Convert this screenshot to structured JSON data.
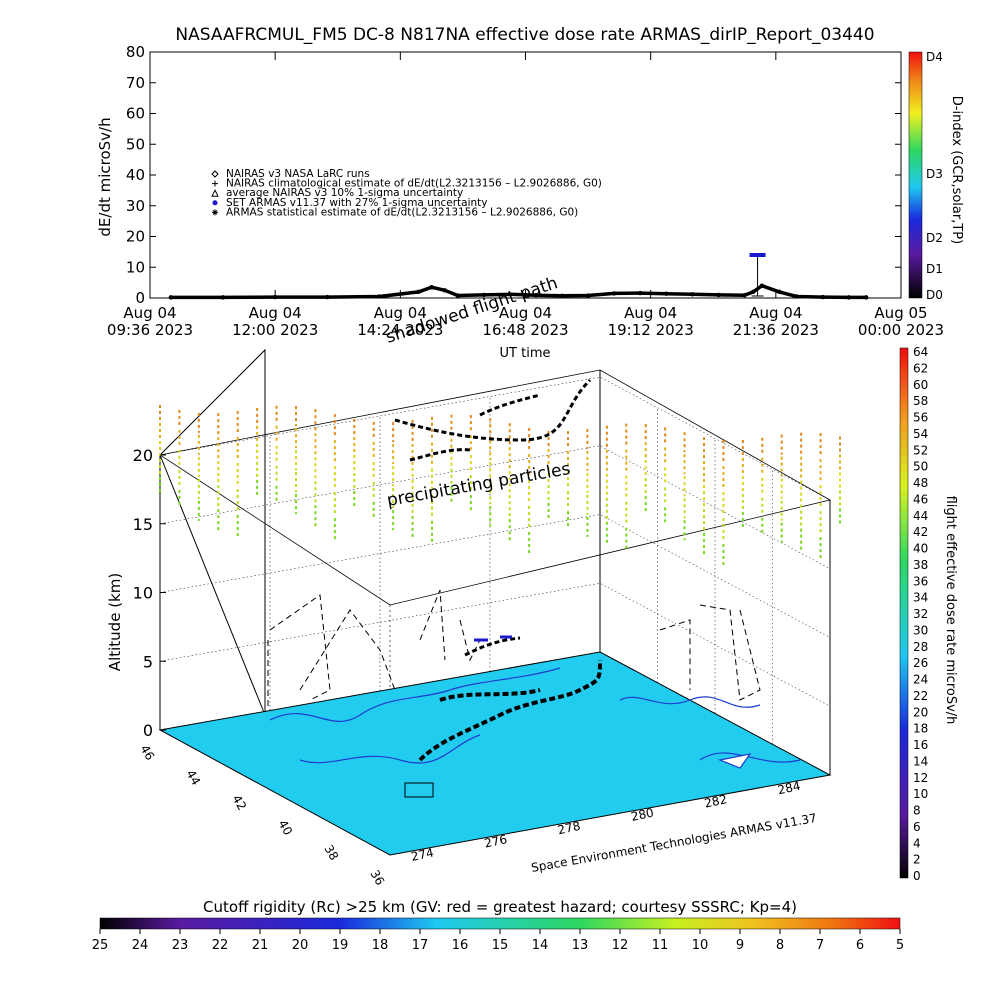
{
  "colors": {
    "black": "#000000",
    "map_ocean": "#22ccee",
    "armas_blue": "#1a1acc",
    "coast_blue": "#1e3ccf"
  },
  "chart_data": [
    {
      "type": "line",
      "title": "NASAAFRCMUL_FM5 DC-8    N817NA effective dose rate ARMAS_dirIP_Report_03440",
      "ylabel": "dE/dt microSv/h",
      "xlabel": "UT time",
      "ylim": [
        0,
        80
      ],
      "yticks": [
        "0",
        "10",
        "20",
        "30",
        "40",
        "50",
        "60",
        "70",
        "80"
      ],
      "xticks": [
        {
          "date": "Aug 04",
          "time": "09:36 2023"
        },
        {
          "date": "Aug 04",
          "time": "12:00 2023"
        },
        {
          "date": "Aug 04",
          "time": "14:24 2023"
        },
        {
          "date": "Aug 04",
          "time": "16:48 2023"
        },
        {
          "date": "Aug 04",
          "time": "19:12 2023"
        },
        {
          "date": "Aug 04",
          "time": "21:36 2023"
        },
        {
          "date": "Aug 05",
          "time": "00:00 2023"
        }
      ],
      "legend": [
        {
          "symbol": "diamond",
          "label": "NAIRAS v3 NASA LaRC runs"
        },
        {
          "symbol": "plus",
          "label": "NAIRAS climatological estimate of dE/dt(L2.3213156 – L2.9026886, G0)"
        },
        {
          "symbol": "triangle",
          "label": "average NAIRAS v3 10% 1-sigma uncertainty"
        },
        {
          "symbol": "dot",
          "label": "SET ARMAS v11.37 with 27% 1-sigma uncertainty"
        },
        {
          "symbol": "asterisk",
          "label": "ARMAS statistical estimate of dE/dt(L2.3213156 – L2.9026886, G0)"
        }
      ],
      "legend_position": "middle-left",
      "series": [
        {
          "name": "ARMAS statistical estimate of dE/dt(L2.3213156 – L2.9026886, G0)",
          "x": [
            "10:00",
            "11:00",
            "12:00",
            "13:00",
            "14:00",
            "14:45",
            "15:00",
            "15:15",
            "15:30",
            "16:00",
            "16:30",
            "17:00",
            "17:30",
            "18:00",
            "18:30",
            "19:00",
            "19:30",
            "20:00",
            "20:30",
            "21:00",
            "21:10",
            "21:20",
            "21:40",
            "22:00",
            "22:30",
            "23:00",
            "23:20"
          ],
          "values": [
            0.2,
            0.2,
            0.3,
            0.3,
            0.5,
            2.0,
            3.5,
            2.5,
            0.8,
            1.0,
            1.2,
            0.9,
            0.7,
            0.8,
            1.5,
            1.6,
            1.4,
            1.2,
            1.0,
            0.9,
            2.0,
            4.0,
            2.0,
            0.5,
            0.3,
            0.2,
            0.2
          ]
        },
        {
          "name": "SET ARMAS v11.37 with 27% 1-sigma uncertainty",
          "x": [
            "21:15"
          ],
          "values": [
            14
          ]
        }
      ],
      "right_axis": {
        "label": "D-index (GCR,solar,TP)",
        "ticks": [
          "D0",
          "D1",
          "D2",
          "D3",
          "D4"
        ]
      }
    },
    {
      "type": "scatter",
      "ylabel": "Altitude (km)",
      "zticks": [
        "0",
        "5",
        "10",
        "15",
        "20"
      ],
      "lat_ticks": [
        "46",
        "44",
        "42",
        "40",
        "38",
        "36"
      ],
      "lon_ticks": [
        "274",
        "276",
        "278",
        "280",
        "282",
        "284"
      ],
      "annotations": [
        "shadowed flight path",
        "precipitating particles"
      ],
      "credit": "Space Environment Technologies ARMAS v11.37",
      "colorbar_right": {
        "label": "flight effective dose rate microSv/h",
        "ticks": [
          "0",
          "2",
          "4",
          "6",
          "8",
          "10",
          "12",
          "14",
          "16",
          "18",
          "20",
          "22",
          "24",
          "26",
          "28",
          "30",
          "32",
          "34",
          "36",
          "38",
          "40",
          "42",
          "44",
          "46",
          "48",
          "50",
          "52",
          "54",
          "56",
          "58",
          "60",
          "62",
          "64"
        ]
      },
      "colorbar_bottom": {
        "label": "Cutoff rigidity (Rc) >25 km (GV: red = greatest hazard; courtesy SSSRC; Kp=4)",
        "ticks": [
          "25",
          "24",
          "23",
          "22",
          "21",
          "20",
          "19",
          "18",
          "17",
          "16",
          "15",
          "14",
          "13",
          "12",
          "11",
          "10",
          "9",
          "8",
          "7",
          "6",
          "5"
        ]
      }
    }
  ]
}
